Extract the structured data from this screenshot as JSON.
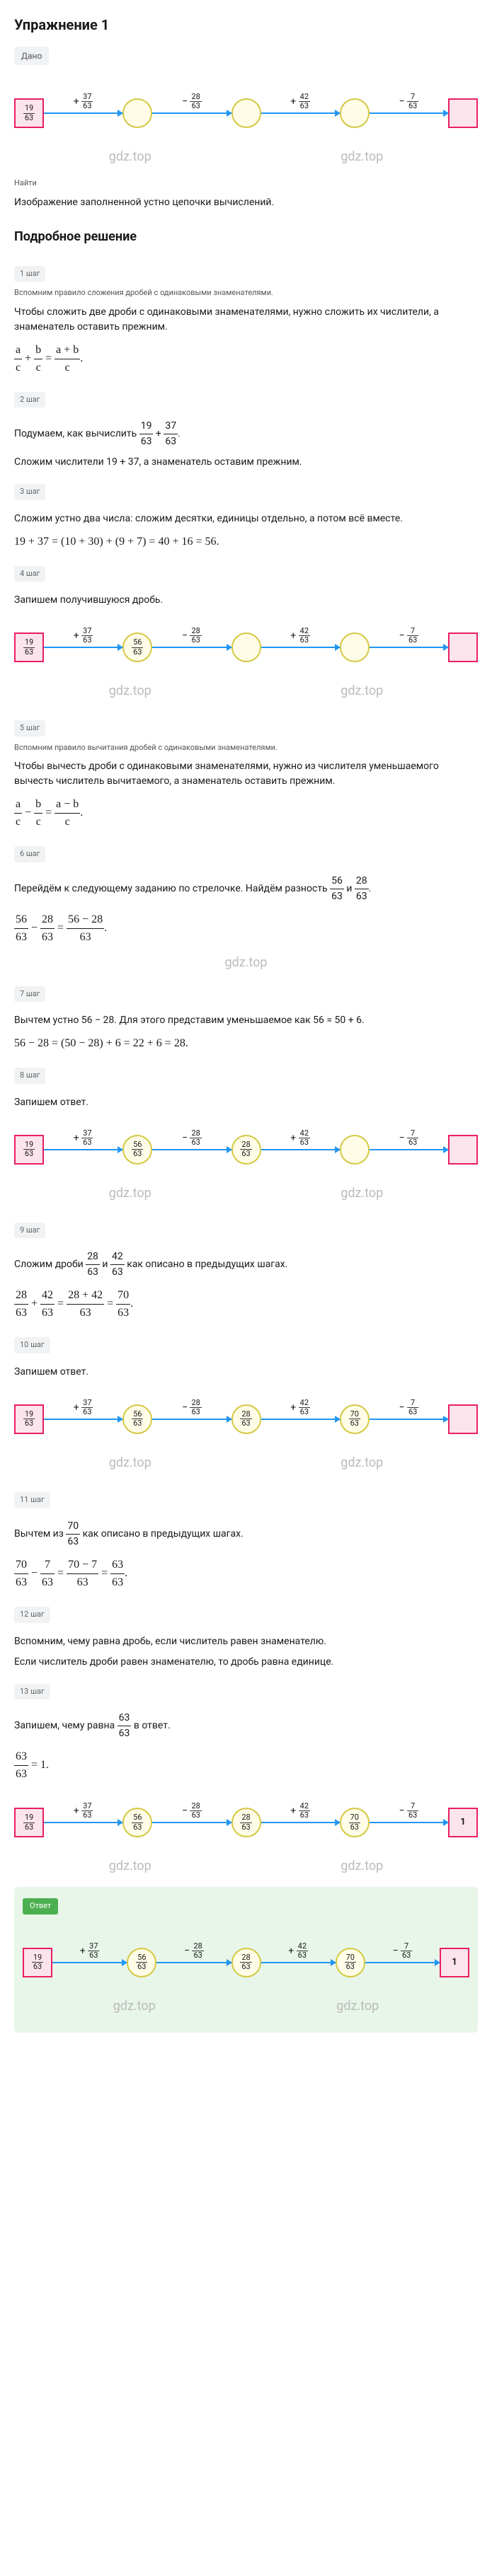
{
  "title": "Упражнение 1",
  "given_label": "Дано",
  "find_label": "Найти",
  "find_text": "Изображение заполненной устно цепочки вычислений.",
  "solution_title": "Подробное решение",
  "watermark": "gdz.top",
  "chain": {
    "start": {
      "num": "19",
      "den": "63"
    },
    "ops": [
      {
        "sign": "+",
        "num": "37",
        "den": "63"
      },
      {
        "sign": "−",
        "num": "28",
        "den": "63"
      },
      {
        "sign": "+",
        "num": "42",
        "den": "63"
      },
      {
        "sign": "−",
        "num": "7",
        "den": "63"
      }
    ],
    "results_empty": [
      "",
      "",
      "",
      ""
    ],
    "results_s4": [
      "56/63",
      "",
      "",
      ""
    ],
    "results_s8": [
      "56/63",
      "28/63",
      "",
      ""
    ],
    "results_s10": [
      "56/63",
      "28/63",
      "70/63",
      ""
    ],
    "results_s13": [
      "56/63",
      "28/63",
      "70/63",
      ""
    ],
    "final_s13": "1",
    "results_answer": [
      "56/63",
      "28/63",
      "70/63",
      ""
    ],
    "final_answer": "1"
  },
  "steps": {
    "s1": {
      "label": "1 шаг",
      "intro": "Вспомним правило сложения дробей с одинаковыми знаменателями.",
      "rule": "Чтобы сложить две дроби с одинаковыми знаменателями, нужно сложить их числители, а знаменатель оставить прежним."
    },
    "formula1": "a/c + b/c = (a+b)/c",
    "s2": {
      "label": "2 шаг",
      "text": "Подумаем, как вычислить 19/63 + 37/63.",
      "text2": "Сложим числители 19 + 37, а знаменатель оставим прежним."
    },
    "s3": {
      "label": "3 шаг",
      "text": "Сложим устно два числа: сложим десятки, единицы отдельно, а потом всё вместе.",
      "calc": "19 + 37 = (10 + 30) + (9 + 7) = 40 + 16 = 56."
    },
    "s4": {
      "label": "4 шаг",
      "text": "Запишем получившуюся дробь."
    },
    "s5": {
      "label": "5 шаг",
      "intro": "Вспомним правило вычитания дробей с одинаковыми знаменателями.",
      "rule": "Чтобы вычесть дроби с одинаковыми знаменателями, нужно из числителя уменьшаемого вычесть числитель вычитаемого, а знаменатель оставить прежним."
    },
    "formula5": "a/c − b/c = (a−b)/c",
    "s6": {
      "label": "6 шаг",
      "text": "Перейдём к следующему заданию по стрелочке. Найдём разность 56/63 и 28/63.",
      "calc": "56/63 − 28/63 = (56−28)/63."
    },
    "s7": {
      "label": "7 шаг",
      "text": "Вычтем устно 56 − 28. Для этого представим уменьшаемое как 56 = 50 + 6.",
      "calc": "56 − 28 = (50 − 28) + 6 = 22 + 6 = 28."
    },
    "s8": {
      "label": "8 шаг",
      "text": "Запишем ответ."
    },
    "s9": {
      "label": "9 шаг",
      "text": "Сложим дроби 28/63 и 42/63 как описано в предыдущих шагах.",
      "calc": "28/63 + 42/63 = (28+42)/63 = 70/63."
    },
    "s10": {
      "label": "10 шаг",
      "text": "Запишем ответ."
    },
    "s11": {
      "label": "11 шаг",
      "text": "Вычтем из 70/63 как описано в предыдущих шагах.",
      "calc": "70/63 − 7/63 = (70−7)/63 = 63/63."
    },
    "s12": {
      "label": "12 шаг",
      "text": "Вспомним, чему равна дробь, если числитель равен знаменателю.",
      "rule": "Если числитель дроби равен знаменателю, то дробь равна единице."
    },
    "s13": {
      "label": "13 шаг",
      "text": "Запишем, чему равна 63/63 в ответ.",
      "calc": "63/63 = 1."
    },
    "answer_label": "Ответ"
  }
}
